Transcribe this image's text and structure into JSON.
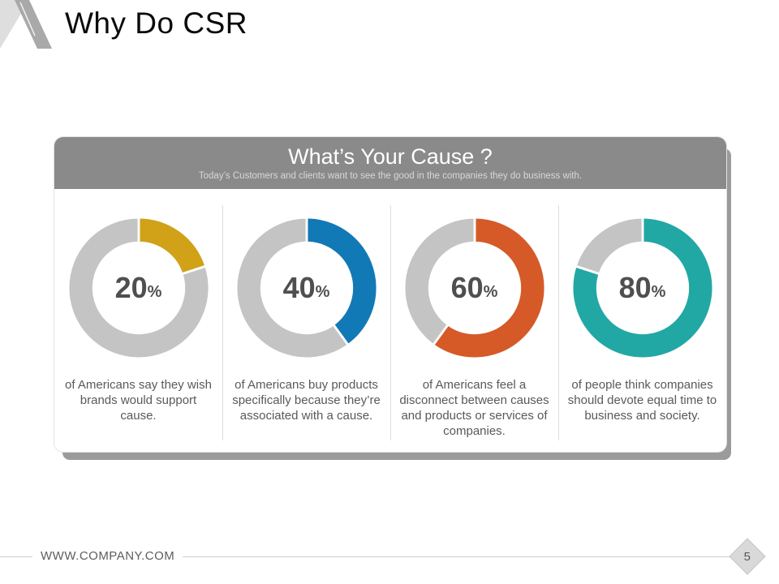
{
  "slide": {
    "title": "Why Do CSR"
  },
  "card": {
    "title": "What’s Your Cause ?",
    "subtitle": "Today’s Customers and clients want to see the good in the companies they do business with."
  },
  "footer": {
    "url": "WWW.COMPANY.COM",
    "page_number": "5"
  },
  "colors": {
    "header_bg": "#8A8A8A",
    "track_gray": "#C4C4C4",
    "shadow_gray": "#9B9B9B",
    "center_label_text": "#4F4F4F",
    "caption_text": "#595959"
  },
  "chart_data": [
    {
      "type": "pie",
      "style": "donut",
      "percent": 20,
      "color": "#D1A117",
      "center_label": "20",
      "center_unit": "%",
      "segments": [
        {
          "name": "value",
          "value": 20
        },
        {
          "name": "remainder",
          "value": 80
        }
      ],
      "caption": "of Americans say they wish brands would support cause."
    },
    {
      "type": "pie",
      "style": "donut",
      "percent": 40,
      "color": "#1179B5",
      "center_label": "40",
      "center_unit": "%",
      "segments": [
        {
          "name": "value",
          "value": 40
        },
        {
          "name": "remainder",
          "value": 60
        }
      ],
      "caption": "of Americans buy products specifically because they’re associated with a cause."
    },
    {
      "type": "pie",
      "style": "donut",
      "percent": 60,
      "color": "#D55A28",
      "center_label": "60",
      "center_unit": "%",
      "segments": [
        {
          "name": "value",
          "value": 60
        },
        {
          "name": "remainder",
          "value": 40
        }
      ],
      "caption": "of Americans feel a disconnect between causes and products or services of companies."
    },
    {
      "type": "pie",
      "style": "donut",
      "percent": 80,
      "color": "#21A8A5",
      "center_label": "80",
      "center_unit": "%",
      "segments": [
        {
          "name": "value",
          "value": 80
        },
        {
          "name": "remainder",
          "value": 20
        }
      ],
      "caption": "of people think companies should devote equal time to business and society."
    }
  ]
}
